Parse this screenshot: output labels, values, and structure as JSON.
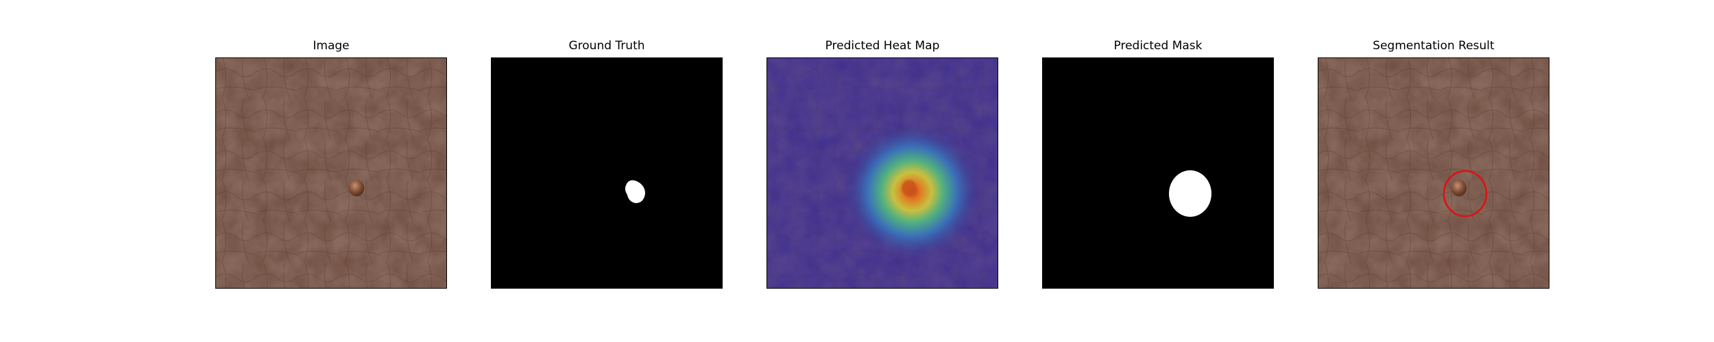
{
  "panels": [
    {
      "title": "Image",
      "content": "leather-skin-photo-with-mole"
    },
    {
      "title": "Ground Truth",
      "content": "binary-mask-small-blob"
    },
    {
      "title": "Predicted Heat Map",
      "content": "jet-heatmap-overlay"
    },
    {
      "title": "Predicted Mask",
      "content": "binary-mask-large-blob"
    },
    {
      "title": "Segmentation Result",
      "content": "photo-with-red-circle"
    }
  ],
  "colors": {
    "leather": "#6e4d40",
    "mask_bg": "#000000",
    "mask_fg": "#ffffff",
    "heat_bg": "#3f2f8f",
    "circle": "#e01010"
  }
}
